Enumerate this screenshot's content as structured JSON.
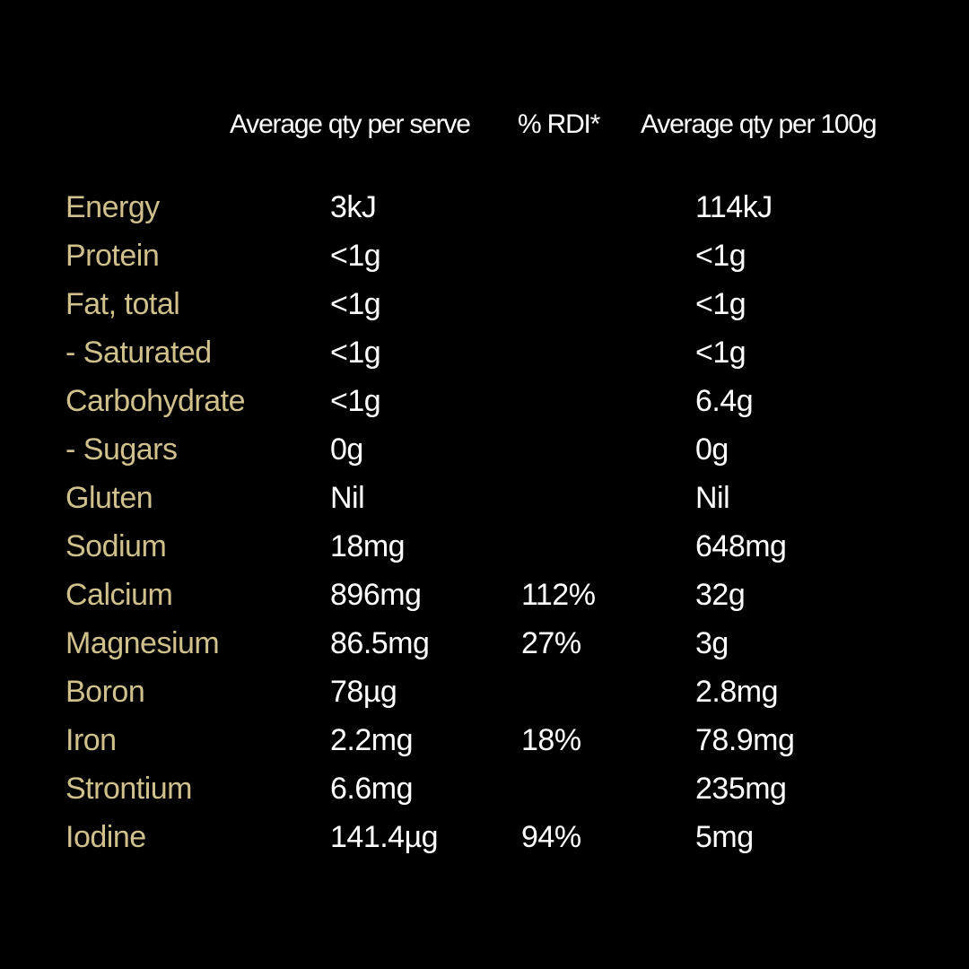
{
  "colors": {
    "background": "#000000",
    "nutrient_name": "#cfc08c",
    "value": "#ffffff",
    "header": "#ffffff"
  },
  "header": {
    "per_serve": "Average qty per serve",
    "rdi": "% RDI*",
    "per_100g": "Average qty per 100g"
  },
  "rows": [
    {
      "name": "Energy",
      "per_serve": "3kJ",
      "rdi": "",
      "per_100g": "114kJ"
    },
    {
      "name": "Protein",
      "per_serve": "<1g",
      "rdi": "",
      "per_100g": "<1g"
    },
    {
      "name": "Fat, total",
      "per_serve": "<1g",
      "rdi": "",
      "per_100g": "<1g"
    },
    {
      "name": "- Saturated",
      "per_serve": "<1g",
      "rdi": "",
      "per_100g": "<1g"
    },
    {
      "name": "Carbohydrate",
      "per_serve": "<1g",
      "rdi": "",
      "per_100g": "6.4g"
    },
    {
      "name": "- Sugars",
      "per_serve": "0g",
      "rdi": "",
      "per_100g": "0g"
    },
    {
      "name": "Gluten",
      "per_serve": "Nil",
      "rdi": "",
      "per_100g": "Nil"
    },
    {
      "name": "Sodium",
      "per_serve": "18mg",
      "rdi": "",
      "per_100g": "648mg"
    },
    {
      "name": "Calcium",
      "per_serve": "896mg",
      "rdi": "112%",
      "per_100g": "32g"
    },
    {
      "name": "Magnesium",
      "per_serve": "86.5mg",
      "rdi": "27%",
      "per_100g": "3g"
    },
    {
      "name": "Boron",
      "per_serve": "78µg",
      "rdi": "",
      "per_100g": "2.8mg"
    },
    {
      "name": "Iron",
      "per_serve": "2.2mg",
      "rdi": "18%",
      "per_100g": "78.9mg"
    },
    {
      "name": "Strontium",
      "per_serve": "6.6mg",
      "rdi": "",
      "per_100g": "235mg"
    },
    {
      "name": "Iodine",
      "per_serve": "141.4µg",
      "rdi": "94%",
      "per_100g": "5mg"
    }
  ]
}
